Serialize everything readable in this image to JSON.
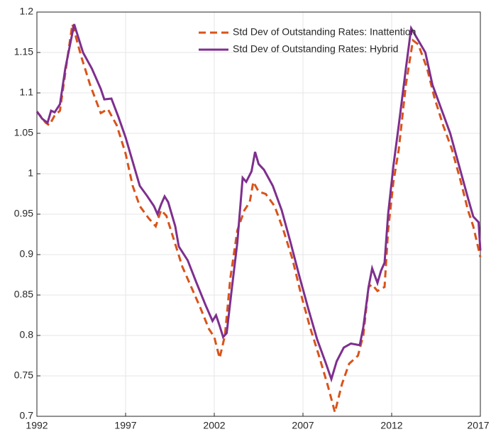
{
  "chart_data": {
    "type": "line",
    "ylim": [
      0.7,
      1.2
    ],
    "yticks": [
      0.7,
      0.75,
      0.8,
      0.85,
      0.9,
      0.95,
      1,
      1.05,
      1.1,
      1.15,
      1.2
    ],
    "xlim": [
      1992,
      2017
    ],
    "xticks": [
      1992,
      1997,
      2002,
      2007,
      2012,
      2017
    ],
    "grid": true,
    "legend": "upper right",
    "series": [
      {
        "name": "Std Dev of Outstanding Rates: Inattention",
        "color": "#d95319",
        "dash": true,
        "x": [
          1992.0,
          1992.5,
          1992.7,
          1993.0,
          1993.3,
          1993.7,
          1994.0,
          1994.5,
          1995.0,
          1995.6,
          1996.0,
          1996.5,
          1997.0,
          1997.4,
          1997.8,
          1998.3,
          1998.7,
          1999.0,
          1999.3,
          1999.7,
          2000.2,
          2000.7,
          2001.2,
          2001.7,
          2002.0,
          2002.3,
          2002.6,
          2002.9,
          2003.3,
          2003.7,
          2004.0,
          2004.2,
          2004.5,
          2004.9,
          2005.4,
          2005.9,
          2006.4,
          2006.9,
          2007.4,
          2007.9,
          2008.4,
          2008.8,
          2009.2,
          2009.6,
          2010.1,
          2010.4,
          2010.7,
          2010.9,
          2011.2,
          2011.6,
          2011.8,
          2012.1,
          2012.4,
          2012.8,
          2013.2,
          2013.5,
          2014.0,
          2014.4,
          2014.9,
          2015.4,
          2015.9,
          2016.3,
          2016.6,
          2017.0
        ],
        "values": [
          1.077,
          1.063,
          1.06,
          1.072,
          1.078,
          1.14,
          1.185,
          1.145,
          1.11,
          1.075,
          1.08,
          1.06,
          1.025,
          0.985,
          0.96,
          0.945,
          0.935,
          0.955,
          0.948,
          0.92,
          0.885,
          0.86,
          0.835,
          0.808,
          0.798,
          0.772,
          0.8,
          0.87,
          0.93,
          0.955,
          0.965,
          0.99,
          0.978,
          0.975,
          0.96,
          0.93,
          0.895,
          0.85,
          0.81,
          0.775,
          0.738,
          0.705,
          0.74,
          0.765,
          0.775,
          0.8,
          0.86,
          0.863,
          0.855,
          0.86,
          0.93,
          0.99,
          1.03,
          1.11,
          1.165,
          1.16,
          1.13,
          1.095,
          1.06,
          1.03,
          0.99,
          0.955,
          0.935,
          0.897
        ]
      },
      {
        "name": "Std Dev of Outstanding Rates: Hybrid",
        "color": "#7e2f8e",
        "dash": false,
        "x": [
          1992.0,
          1992.3,
          1992.6,
          1992.8,
          1993.0,
          1993.3,
          1993.6,
          1994.1,
          1994.6,
          1995.1,
          1995.6,
          1995.8,
          1996.2,
          1996.6,
          1997.0,
          1997.4,
          1997.8,
          1998.2,
          1998.6,
          1998.8,
          1999.0,
          1999.2,
          1999.4,
          1999.8,
          2000.0,
          2000.5,
          2001.0,
          2001.5,
          2001.9,
          2002.1,
          2002.3,
          2002.5,
          2002.7,
          2003.0,
          2003.3,
          2003.6,
          2003.8,
          2004.1,
          2004.3,
          2004.5,
          2004.8,
          2005.3,
          2005.8,
          2006.3,
          2006.8,
          2007.3,
          2007.8,
          2008.3,
          2008.6,
          2008.9,
          2009.3,
          2009.7,
          2010.2,
          2010.4,
          2010.7,
          2010.9,
          2011.2,
          2011.4,
          2011.6,
          2011.8,
          2012.1,
          2012.4,
          2012.8,
          2013.1,
          2013.5,
          2013.9,
          2014.3,
          2014.8,
          2015.3,
          2015.8,
          2016.3,
          2016.6,
          2016.9,
          2017.0
        ],
        "values": [
          1.077,
          1.068,
          1.063,
          1.078,
          1.076,
          1.086,
          1.13,
          1.185,
          1.15,
          1.13,
          1.105,
          1.092,
          1.093,
          1.07,
          1.045,
          1.015,
          0.985,
          0.973,
          0.96,
          0.95,
          0.962,
          0.972,
          0.965,
          0.935,
          0.91,
          0.893,
          0.865,
          0.838,
          0.818,
          0.825,
          0.812,
          0.798,
          0.803,
          0.86,
          0.915,
          0.995,
          0.99,
          1.003,
          1.027,
          1.012,
          1.005,
          0.985,
          0.955,
          0.915,
          0.873,
          0.833,
          0.795,
          0.765,
          0.746,
          0.768,
          0.785,
          0.79,
          0.788,
          0.81,
          0.86,
          0.883,
          0.865,
          0.88,
          0.89,
          0.95,
          1.01,
          1.06,
          1.13,
          1.18,
          1.165,
          1.15,
          1.11,
          1.08,
          1.05,
          1.01,
          0.97,
          0.947,
          0.94,
          0.905
        ]
      }
    ]
  }
}
